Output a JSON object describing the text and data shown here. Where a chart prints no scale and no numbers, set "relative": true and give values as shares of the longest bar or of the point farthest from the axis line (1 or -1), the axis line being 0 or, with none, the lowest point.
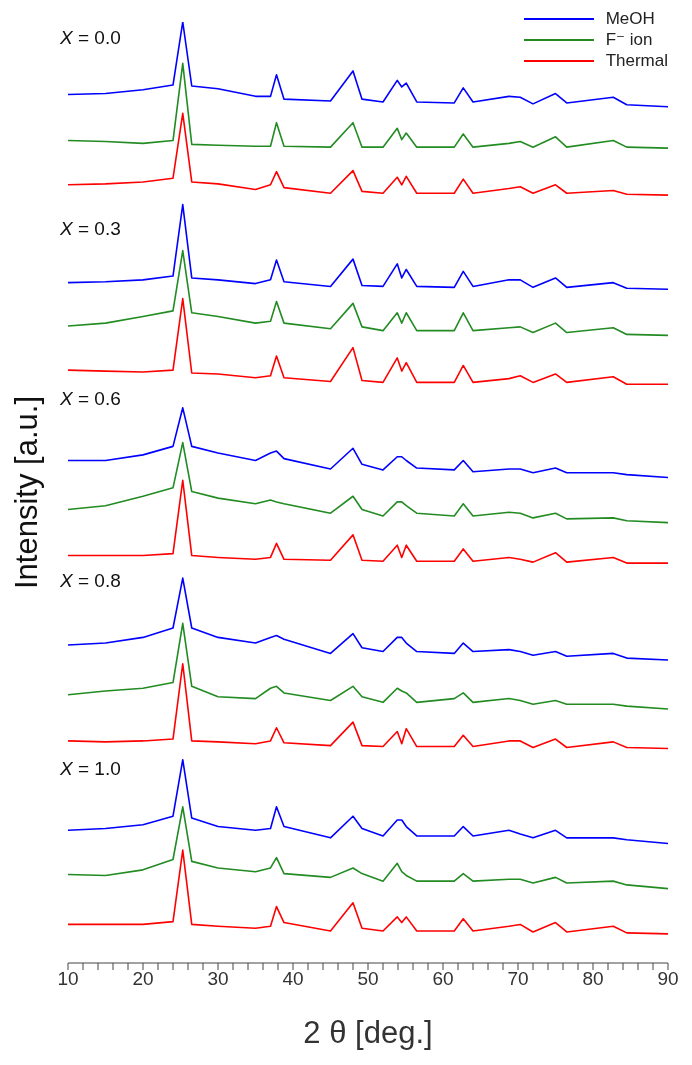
{
  "chart_data": {
    "type": "line",
    "relative": true,
    "xlabel": "2 θ [deg.]",
    "ylabel": "Intensity [a.u.]",
    "legend": "top right",
    "annotations": [
      "X = 0.0",
      "X = 0.3",
      "X = 0.6",
      "X = 0.8",
      "X = 1.0"
    ],
    "xlim": [
      10,
      90
    ],
    "xticks": [
      10,
      {
        "value": 12,
        "label": null
      },
      {
        "value": 14,
        "label": null
      },
      {
        "value": 16,
        "label": null
      },
      {
        "value": 18,
        "label": null
      },
      20,
      {
        "value": 22,
        "label": null
      },
      {
        "value": 24,
        "label": null
      },
      {
        "value": 26,
        "label": null
      },
      {
        "value": 28,
        "label": null
      },
      30,
      {
        "value": 32,
        "label": null
      },
      {
        "value": 34,
        "label": null
      },
      {
        "value": 36,
        "label": null
      },
      {
        "value": 38,
        "label": null
      },
      40,
      {
        "value": 42,
        "label": null
      },
      {
        "value": 44,
        "label": null
      },
      {
        "value": 46,
        "label": null
      },
      {
        "value": 48,
        "label": null
      },
      50,
      {
        "value": 52,
        "label": null
      },
      {
        "value": 54,
        "label": null
      },
      {
        "value": 56,
        "label": null
      },
      {
        "value": 58,
        "label": null
      },
      60,
      {
        "value": 62,
        "label": null
      },
      {
        "value": 64,
        "label": null
      },
      {
        "value": 66,
        "label": null
      },
      {
        "value": 68,
        "label": null
      },
      70,
      {
        "value": 72,
        "label": null
      },
      {
        "value": 74,
        "label": null
      },
      {
        "value": 76,
        "label": null
      },
      {
        "value": 78,
        "label": null
      },
      80,
      {
        "value": 82,
        "label": null
      },
      {
        "value": 84,
        "label": null
      },
      {
        "value": 86,
        "label": null
      },
      {
        "value": 88,
        "label": null
      },
      90
    ],
    "x": [
      10,
      15,
      20,
      24,
      25.3,
      26.5,
      30,
      35,
      37,
      37.8,
      38.8,
      45,
      48,
      49.2,
      52,
      53.9,
      54.5,
      55.1,
      56.5,
      61.5,
      62.7,
      64,
      68.8,
      70.3,
      72,
      75,
      76.5,
      82.7,
      84.5,
      90
    ],
    "series": [
      {
        "name": "MeOH",
        "color": "#0000ff",
        "values": [
          0.923,
          0.924,
          0.928,
          0.933,
          1,
          0.932,
          0.929,
          0.921,
          0.921,
          0.944,
          0.918,
          0.916,
          0.948,
          0.918,
          0.915,
          0.938,
          0.931,
          0.935,
          0.915,
          0.914,
          0.93,
          0.915,
          0.921,
          0.92,
          0.913,
          0.924,
          0.914,
          0.92,
          0.912,
          0.91
        ]
      },
      {
        "name": "F⁻ ion",
        "color": "#228b22",
        "values": [
          0.874,
          0.873,
          0.871,
          0.874,
          0.956,
          0.87,
          0.869,
          0.868,
          0.868,
          0.893,
          0.868,
          0.867,
          0.893,
          0.867,
          0.867,
          0.887,
          0.875,
          0.882,
          0.867,
          0.867,
          0.881,
          0.867,
          0.871,
          0.873,
          0.867,
          0.878,
          0.867,
          0.874,
          0.867,
          0.866
        ]
      },
      {
        "name": "Thermal",
        "color": "#ff0000",
        "values": [
          0.827,
          0.828,
          0.83,
          0.834,
          0.903,
          0.83,
          0.828,
          0.822,
          0.827,
          0.841,
          0.824,
          0.818,
          0.842,
          0.82,
          0.818,
          0.835,
          0.827,
          0.836,
          0.818,
          0.818,
          0.833,
          0.818,
          0.823,
          0.825,
          0.818,
          0.827,
          0.818,
          0.821,
          0.817,
          0.816
        ]
      },
      {
        "color": "#0000ff",
        "values": [
          0.723,
          0.724,
          0.726,
          0.73,
          0.806,
          0.728,
          0.726,
          0.722,
          0.726,
          0.747,
          0.724,
          0.719,
          0.748,
          0.72,
          0.719,
          0.743,
          0.728,
          0.737,
          0.719,
          0.718,
          0.735,
          0.719,
          0.726,
          0.726,
          0.718,
          0.728,
          0.718,
          0.723,
          0.717,
          0.716
        ]
      },
      {
        "color": "#228b22",
        "values": [
          0.677,
          0.68,
          0.687,
          0.693,
          0.757,
          0.691,
          0.687,
          0.68,
          0.682,
          0.703,
          0.68,
          0.674,
          0.701,
          0.676,
          0.672,
          0.691,
          0.68,
          0.691,
          0.672,
          0.672,
          0.691,
          0.672,
          0.675,
          0.676,
          0.67,
          0.68,
          0.67,
          0.675,
          0.668,
          0.667
        ]
      },
      {
        "color": "#ff0000",
        "values": [
          0.63,
          0.629,
          0.628,
          0.63,
          0.706,
          0.627,
          0.626,
          0.622,
          0.624,
          0.645,
          0.622,
          0.618,
          0.654,
          0.619,
          0.617,
          0.643,
          0.629,
          0.638,
          0.617,
          0.617,
          0.635,
          0.617,
          0.621,
          0.624,
          0.617,
          0.626,
          0.617,
          0.623,
          0.615,
          0.615
        ]
      },
      {
        "color": "#0000ff",
        "values": [
          0.534,
          0.534,
          0.54,
          0.549,
          0.59,
          0.549,
          0.542,
          0.534,
          0.542,
          0.544,
          0.536,
          0.525,
          0.547,
          0.53,
          0.524,
          0.538,
          0.538,
          0.534,
          0.526,
          0.524,
          0.534,
          0.522,
          0.525,
          0.525,
          0.521,
          0.526,
          0.521,
          0.521,
          0.519,
          0.516
        ]
      },
      {
        "color": "#228b22",
        "values": [
          0.482,
          0.486,
          0.496,
          0.505,
          0.553,
          0.501,
          0.494,
          0.488,
          0.492,
          0.49,
          0.488,
          0.478,
          0.496,
          0.482,
          0.475,
          0.49,
          0.49,
          0.486,
          0.478,
          0.475,
          0.488,
          0.475,
          0.479,
          0.478,
          0.473,
          0.478,
          0.472,
          0.473,
          0.47,
          0.468
        ]
      },
      {
        "color": "#ff0000",
        "values": [
          0.433,
          0.433,
          0.433,
          0.435,
          0.513,
          0.433,
          0.431,
          0.429,
          0.431,
          0.446,
          0.429,
          0.428,
          0.455,
          0.428,
          0.427,
          0.444,
          0.431,
          0.444,
          0.427,
          0.427,
          0.44,
          0.427,
          0.431,
          0.429,
          0.426,
          0.436,
          0.426,
          0.431,
          0.425,
          0.425
        ]
      },
      {
        "color": "#0000ff",
        "values": [
          0.338,
          0.34,
          0.346,
          0.356,
          0.409,
          0.356,
          0.346,
          0.34,
          0.346,
          0.348,
          0.344,
          0.329,
          0.35,
          0.335,
          0.331,
          0.346,
          0.346,
          0.34,
          0.331,
          0.329,
          0.34,
          0.331,
          0.333,
          0.331,
          0.327,
          0.331,
          0.326,
          0.329,
          0.324,
          0.322
        ]
      },
      {
        "color": "#228b22",
        "values": [
          0.285,
          0.289,
          0.292,
          0.298,
          0.361,
          0.294,
          0.283,
          0.281,
          0.292,
          0.294,
          0.287,
          0.279,
          0.294,
          0.283,
          0.277,
          0.292,
          0.289,
          0.287,
          0.277,
          0.281,
          0.287,
          0.277,
          0.281,
          0.279,
          0.275,
          0.279,
          0.275,
          0.275,
          0.273,
          0.27
        ]
      },
      {
        "color": "#ff0000",
        "values": [
          0.236,
          0.235,
          0.236,
          0.238,
          0.318,
          0.236,
          0.235,
          0.233,
          0.236,
          0.25,
          0.234,
          0.231,
          0.256,
          0.231,
          0.23,
          0.246,
          0.233,
          0.249,
          0.23,
          0.23,
          0.242,
          0.23,
          0.236,
          0.236,
          0.229,
          0.238,
          0.229,
          0.235,
          0.229,
          0.228
        ]
      },
      {
        "color": "#0000ff",
        "values": [
          0.141,
          0.143,
          0.147,
          0.156,
          0.216,
          0.154,
          0.145,
          0.141,
          0.143,
          0.166,
          0.145,
          0.133,
          0.156,
          0.143,
          0.135,
          0.152,
          0.152,
          0.145,
          0.135,
          0.135,
          0.145,
          0.135,
          0.141,
          0.137,
          0.133,
          0.141,
          0.133,
          0.133,
          0.131,
          0.127
        ]
      },
      {
        "color": "#228b22",
        "values": [
          0.094,
          0.093,
          0.099,
          0.11,
          0.166,
          0.108,
          0.101,
          0.097,
          0.101,
          0.112,
          0.095,
          0.091,
          0.101,
          0.095,
          0.087,
          0.106,
          0.097,
          0.093,
          0.087,
          0.087,
          0.095,
          0.087,
          0.089,
          0.089,
          0.085,
          0.091,
          0.085,
          0.087,
          0.083,
          0.079
        ]
      },
      {
        "color": "#ff0000",
        "values": [
          0.041,
          0.041,
          0.041,
          0.044,
          0.12,
          0.041,
          0.039,
          0.037,
          0.039,
          0.06,
          0.043,
          0.034,
          0.064,
          0.037,
          0.034,
          0.049,
          0.043,
          0.049,
          0.034,
          0.034,
          0.047,
          0.034,
          0.039,
          0.041,
          0.033,
          0.043,
          0.033,
          0.039,
          0.032,
          0.031
        ]
      }
    ]
  }
}
